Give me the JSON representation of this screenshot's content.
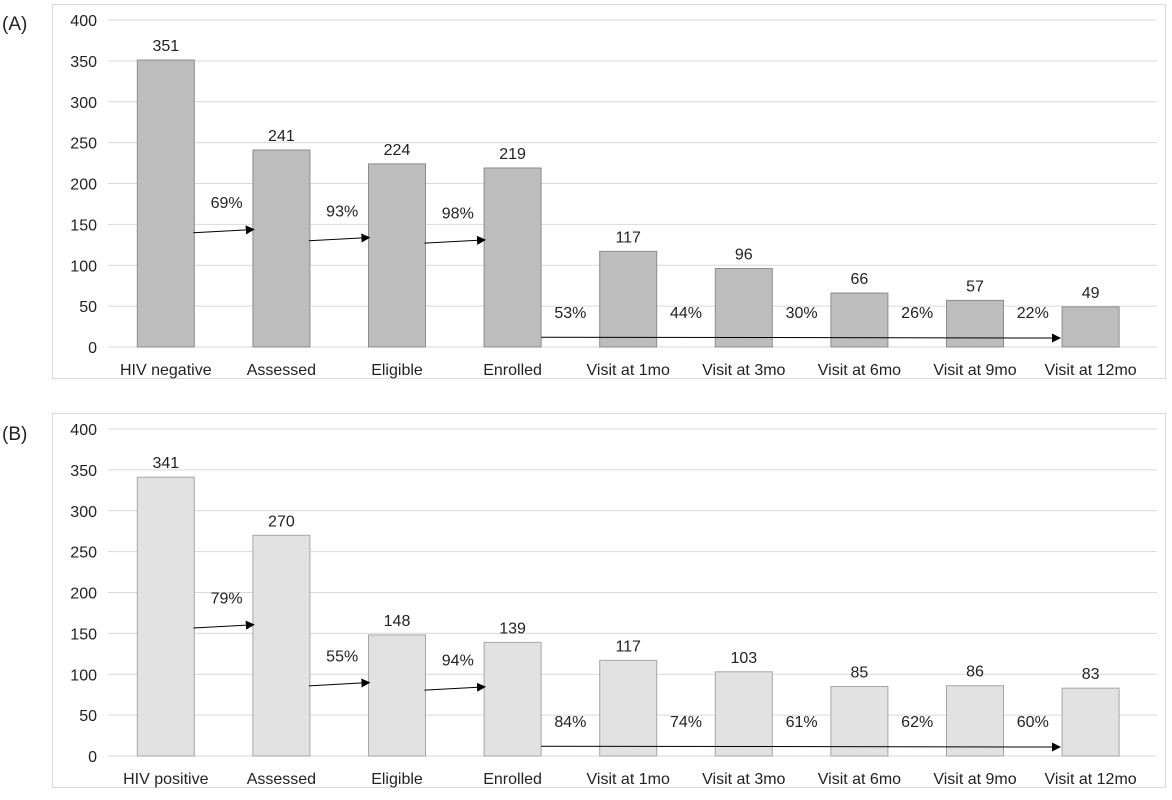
{
  "colors": {
    "bar_a_fill": "#bdbdbd",
    "bar_a_stroke": "#8c8c8c",
    "bar_b_fill": "#e2e2e2",
    "bar_b_stroke": "#a6a6a6",
    "grid": "#d9d9d9",
    "arrow": "#000000",
    "text": "#222222"
  },
  "chart_data": [
    {
      "type": "bar",
      "panel_label": "(A)",
      "categories": [
        "HIV negative",
        "Assessed",
        "Eligible",
        "Enrolled",
        "Visit at 1mo",
        "Visit at 3mo",
        "Visit at 6mo",
        "Visit at 9mo",
        "Visit at 12mo"
      ],
      "values": [
        351,
        241,
        224,
        219,
        117,
        96,
        66,
        57,
        49
      ],
      "data_labels": [
        "351",
        "241",
        "224",
        "219",
        "117",
        "96",
        "66",
        "57",
        "49"
      ],
      "ylim": [
        0,
        400
      ],
      "yticks": [
        "0",
        "50",
        "100",
        "150",
        "200",
        "250",
        "300",
        "350",
        "400"
      ],
      "grid": true,
      "step_percentages": [
        "69%",
        "93%",
        "98%"
      ],
      "followup_percentages": [
        "53%",
        "44%",
        "30%",
        "26%",
        "22%"
      ]
    },
    {
      "type": "bar",
      "panel_label": "(B)",
      "categories": [
        "HIV positive",
        "Assessed",
        "Eligible",
        "Enrolled",
        "Visit at 1mo",
        "Visit at 3mo",
        "Visit at 6mo",
        "Visit at 9mo",
        "Visit at 12mo"
      ],
      "values": [
        341,
        270,
        148,
        139,
        117,
        103,
        85,
        86,
        83
      ],
      "data_labels": [
        "341",
        "270",
        "148",
        "139",
        "117",
        "103",
        "85",
        "86",
        "83"
      ],
      "ylim": [
        0,
        400
      ],
      "yticks": [
        "0",
        "50",
        "100",
        "150",
        "200",
        "250",
        "300",
        "350",
        "400"
      ],
      "grid": true,
      "step_percentages": [
        "79%",
        "55%",
        "94%"
      ],
      "followup_percentages": [
        "84%",
        "74%",
        "61%",
        "62%",
        "60%"
      ]
    }
  ]
}
